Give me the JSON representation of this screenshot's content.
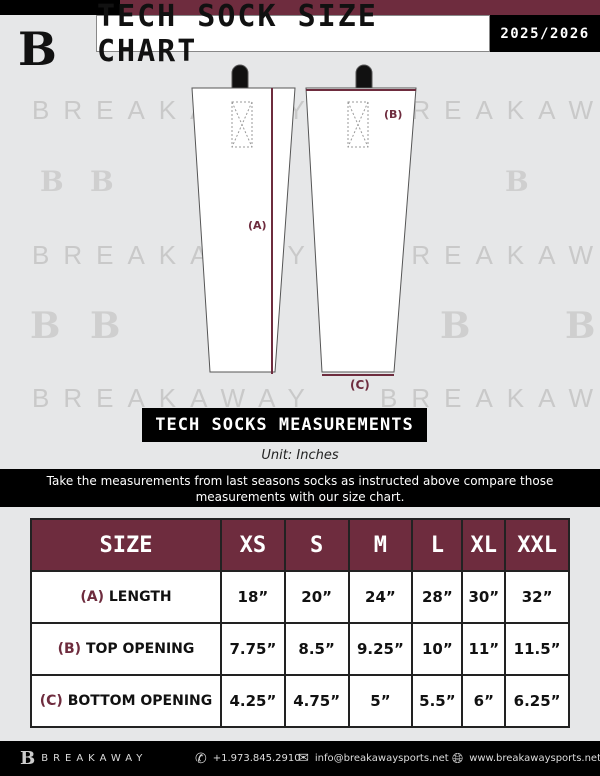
{
  "header": {
    "title": "TECH SOCK SIZE CHART",
    "season": "2025/2026",
    "logo": "B"
  },
  "watermark": {
    "text": "BREAKAWAY",
    "logo": "B"
  },
  "diagram": {
    "length_label": "(A)",
    "top_label": "(B)",
    "bottom_label": "(C)"
  },
  "section_title": "TECH SOCKS MEASUREMENTS",
  "unit": "Unit: Inches",
  "instructions": "Take the measurements from last seasons socks as instructed above compare those measurements  with our size chart.",
  "table": {
    "headers": [
      "SIZE",
      "XS",
      "S",
      "M",
      "L",
      "XL",
      "XXL"
    ],
    "rows": [
      {
        "letter": "(A)",
        "name": "LENGTH",
        "values": [
          "18”",
          "20”",
          "24”",
          "28”",
          "30”",
          "32”"
        ]
      },
      {
        "letter": "(B)",
        "name": "TOP OPENING",
        "values": [
          "7.75”",
          "8.5”",
          "9.25”",
          "10”",
          "11”",
          "11.5”"
        ]
      },
      {
        "letter": "(C)",
        "name": "BOTTOM OPENING",
        "values": [
          "4.25”",
          "4.75”",
          "5”",
          "5.5”",
          "6”",
          "6.25”"
        ]
      }
    ]
  },
  "footer": {
    "brand": "BREAKAWAY",
    "phone": "+1.973.845.2910",
    "email": "info@breakawaysports.net",
    "website": "www.breakawaysports.net"
  },
  "colors": {
    "maroon": "#6e2c3e",
    "black": "#000000"
  }
}
